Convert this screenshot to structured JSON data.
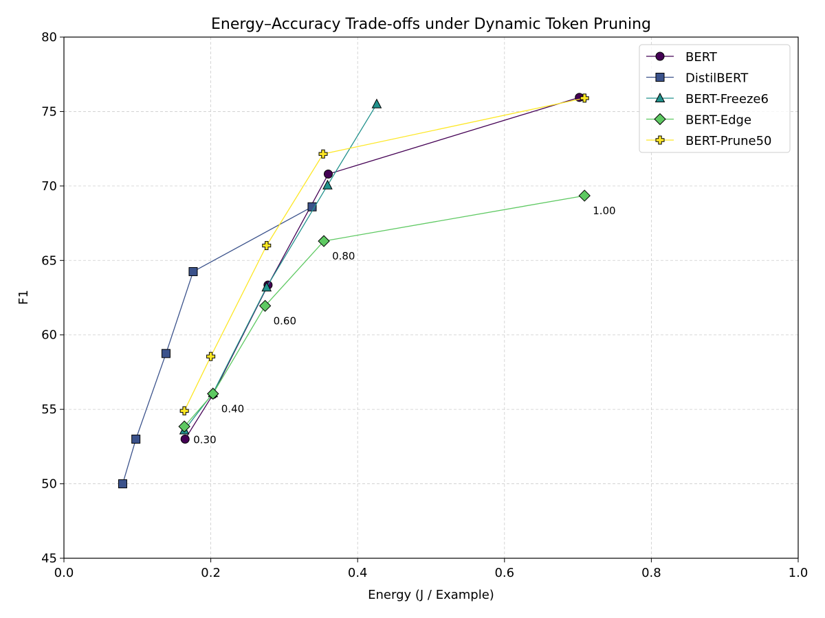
{
  "chart_data": {
    "type": "line",
    "title": "Energy–Accuracy Trade-offs under Dynamic Token Pruning",
    "xlabel": "Energy (J / Example)",
    "ylabel": "F1",
    "xlim": [
      0.0,
      1.0
    ],
    "ylim": [
      45,
      80
    ],
    "xticks": [
      "0.0",
      "0.2",
      "0.4",
      "0.6",
      "0.8",
      "1.0"
    ],
    "yticks": [
      "45",
      "50",
      "55",
      "60",
      "65",
      "70",
      "75",
      "80"
    ],
    "grid": true,
    "legend_position": "top-right",
    "series": [
      {
        "name": "BERT",
        "color": "#440154",
        "marker": "circle",
        "x": [
          0.165,
          0.203,
          0.278,
          0.36,
          0.702
        ],
        "y": [
          53.0,
          56.0,
          63.35,
          70.8,
          75.95
        ]
      },
      {
        "name": "DistilBERT",
        "color": "#3b528b",
        "marker": "square",
        "x": [
          0.08,
          0.098,
          0.139,
          0.176,
          0.338
        ],
        "y": [
          50.0,
          53.0,
          58.75,
          64.25,
          68.6
        ]
      },
      {
        "name": "BERT-Freeze6",
        "color": "#21918c",
        "marker": "triangle",
        "x": [
          0.164,
          0.203,
          0.276,
          0.359,
          0.426
        ],
        "y": [
          53.6,
          56.1,
          63.2,
          70.05,
          75.5
        ]
      },
      {
        "name": "BERT-Edge",
        "color": "#5ec962",
        "marker": "diamond",
        "x": [
          0.164,
          0.203,
          0.274,
          0.354,
          0.709
        ],
        "y": [
          53.85,
          56.05,
          61.95,
          66.3,
          69.35
        ]
      },
      {
        "name": "BERT-Prune50",
        "color": "#fde725",
        "marker": "plus",
        "x": [
          0.164,
          0.2,
          0.276,
          0.353,
          0.709
        ],
        "y": [
          54.9,
          58.55,
          66.0,
          72.15,
          75.9
        ]
      }
    ],
    "annotations": [
      {
        "text": "0.30",
        "x": 0.165,
        "y": 53.0
      },
      {
        "text": "0.40",
        "x": 0.203,
        "y": 56.05
      },
      {
        "text": "0.60",
        "x": 0.274,
        "y": 61.95
      },
      {
        "text": "0.80",
        "x": 0.354,
        "y": 66.3
      },
      {
        "text": "1.00",
        "x": 0.709,
        "y": 69.35
      }
    ]
  }
}
